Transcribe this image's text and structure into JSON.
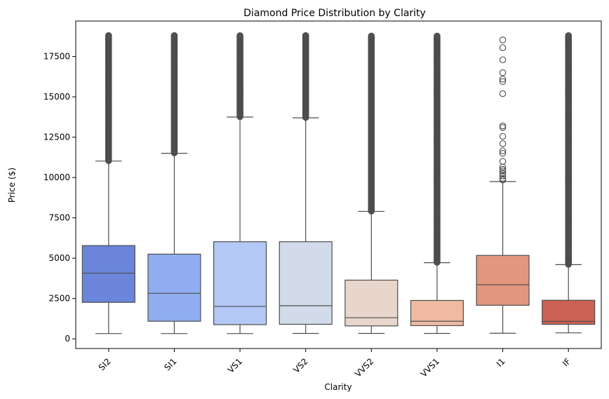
{
  "chart_data": {
    "type": "box",
    "title": "Diamond Price Distribution by Clarity",
    "xlabel": "Clarity",
    "ylabel": "Price ($)",
    "ylim": [
      -600,
      19700
    ],
    "yticks": [
      0,
      2500,
      5000,
      7500,
      10000,
      12500,
      15000,
      17500
    ],
    "grid": false,
    "categories": [
      "SI2",
      "SI1",
      "VS1",
      "VS2",
      "VVS2",
      "VVS1",
      "I1",
      "IF"
    ],
    "boxes": [
      {
        "category": "SI2",
        "color": "#6a85da",
        "whisker_low": 326,
        "q1": 2260,
        "median": 4070,
        "q3": 5780,
        "whisker_high": 11020,
        "outliers": {
          "dense_range": [
            11020,
            18800
          ]
        }
      },
      {
        "category": "SI1",
        "color": "#8fadf0",
        "whisker_low": 326,
        "q1": 1090,
        "median": 2820,
        "q3": 5250,
        "whisker_high": 11500,
        "outliers": {
          "dense_range": [
            11500,
            18800
          ]
        }
      },
      {
        "category": "VS1",
        "color": "#b3c8f5",
        "whisker_low": 327,
        "q1": 880,
        "median": 2010,
        "q3": 6020,
        "whisker_high": 13750,
        "outliers": {
          "dense_range": [
            13750,
            18800
          ]
        }
      },
      {
        "category": "VS2",
        "color": "#d2dbe9",
        "whisker_low": 334,
        "q1": 900,
        "median": 2050,
        "q3": 6020,
        "whisker_high": 13700,
        "outliers": {
          "dense_range": [
            13700,
            18800
          ]
        }
      },
      {
        "category": "VVS2",
        "color": "#e8d5cc",
        "whisker_low": 336,
        "q1": 800,
        "median": 1310,
        "q3": 3640,
        "whisker_high": 7900,
        "outliers": {
          "dense_range": [
            7900,
            18770
          ]
        }
      },
      {
        "category": "VVS1",
        "color": "#f0b9a1",
        "whisker_low": 336,
        "q1": 820,
        "median": 1090,
        "q3": 2380,
        "whisker_high": 4720,
        "outliers": {
          "dense_range": [
            4720,
            18770
          ]
        }
      },
      {
        "category": "I1",
        "color": "#e3967d",
        "whisker_low": 345,
        "q1": 2080,
        "median": 3350,
        "q3": 5170,
        "whisker_high": 9750,
        "outliers": {
          "values": [
            9850,
            9950,
            10100,
            10250,
            10400,
            10500,
            10650,
            11000,
            11500,
            11650,
            12100,
            12550,
            13100,
            13200,
            15200,
            15950,
            16100,
            16500,
            17300,
            18050,
            18530
          ]
        }
      },
      {
        "category": "IF",
        "color": "#cc6255",
        "whisker_low": 369,
        "q1": 900,
        "median": 1080,
        "q3": 2390,
        "whisker_high": 4600,
        "outliers": {
          "dense_range": [
            4600,
            18800
          ]
        }
      }
    ]
  }
}
